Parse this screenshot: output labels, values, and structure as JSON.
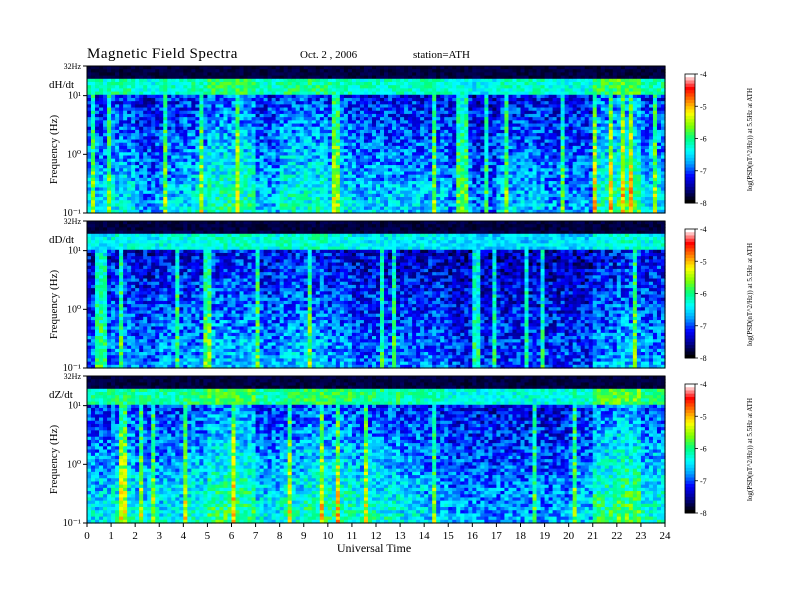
{
  "header": {
    "title": "Magnetic Field Spectra",
    "date": "Oct. 2 , 2006",
    "station": "station=ATH"
  },
  "colors": {
    "background": "#000000",
    "colormap": [
      "#000000",
      "#00008b",
      "#0000ff",
      "#00a0ff",
      "#00ffff",
      "#00ff80",
      "#80ff00",
      "#ffff00",
      "#ff8000",
      "#ff0000",
      "#ffffff"
    ]
  },
  "chart_data": [
    {
      "type": "heatmap",
      "panel_label": "dH/dt",
      "ylabel": "Frequency (Hz)",
      "xlabel": "",
      "y_scale": "log",
      "ylim": [
        0.1,
        32
      ],
      "xlim": [
        0,
        24
      ],
      "y_ticks": [
        "32Hz",
        "10¹",
        "10⁰",
        "10⁻¹"
      ],
      "y_tick_values": [
        32,
        10,
        1,
        0.1
      ],
      "colorbar_label": "log(PSD(nT^2/Hz)) at 5.5Hz at ATH",
      "colorbar_ticks": [
        -4,
        -5,
        -6,
        -7,
        -8
      ],
      "colorbar_range": [
        -8,
        -4
      ],
      "activity_by_hour": [
        0.45,
        0.5,
        0.4,
        0.45,
        0.5,
        0.6,
        0.6,
        0.45,
        0.55,
        0.55,
        0.5,
        0.45,
        0.45,
        0.45,
        0.45,
        0.4,
        0.35,
        0.45,
        0.45,
        0.4,
        0.4,
        0.6,
        0.65,
        0.5
      ]
    },
    {
      "type": "heatmap",
      "panel_label": "dD/dt",
      "ylabel": "Frequency (Hz)",
      "xlabel": "",
      "y_scale": "log",
      "ylim": [
        0.1,
        32
      ],
      "xlim": [
        0,
        24
      ],
      "y_ticks": [
        "32Hz",
        "10¹",
        "10⁰",
        "10⁻¹"
      ],
      "y_tick_values": [
        32,
        10,
        1,
        0.1
      ],
      "colorbar_label": "log(PSD(nT^2/Hz)) at 5.5Hz at ATH",
      "colorbar_ticks": [
        -4,
        -5,
        -6,
        -7,
        -8
      ],
      "colorbar_range": [
        -8,
        -4
      ],
      "activity_by_hour": [
        0.35,
        0.4,
        0.35,
        0.4,
        0.4,
        0.45,
        0.45,
        0.4,
        0.45,
        0.45,
        0.4,
        0.35,
        0.35,
        0.35,
        0.35,
        0.3,
        0.3,
        0.3,
        0.3,
        0.3,
        0.3,
        0.4,
        0.45,
        0.4
      ]
    },
    {
      "type": "heatmap",
      "panel_label": "dZ/dt",
      "ylabel": "Frequency (Hz)",
      "xlabel": "Universal Time",
      "y_scale": "log",
      "ylim": [
        0.1,
        32
      ],
      "xlim": [
        0,
        24
      ],
      "x_ticks": [
        "0",
        "1",
        "2",
        "3",
        "4",
        "5",
        "6",
        "7",
        "8",
        "9",
        "10",
        "11",
        "12",
        "13",
        "14",
        "15",
        "16",
        "17",
        "18",
        "19",
        "20",
        "21",
        "22",
        "23",
        "24"
      ],
      "y_ticks": [
        "32Hz",
        "10¹",
        "10⁰",
        "10⁻¹"
      ],
      "y_tick_values": [
        32,
        10,
        1,
        0.1
      ],
      "colorbar_label": "log(PSD(nT^2/Hz)) at 5.5Hz at ATH",
      "colorbar_ticks": [
        -4,
        -5,
        -6,
        -7,
        -8
      ],
      "colorbar_range": [
        -8,
        -4
      ],
      "activity_by_hour": [
        0.5,
        0.55,
        0.5,
        0.5,
        0.55,
        0.65,
        0.65,
        0.5,
        0.55,
        0.6,
        0.6,
        0.55,
        0.55,
        0.5,
        0.45,
        0.4,
        0.4,
        0.4,
        0.4,
        0.4,
        0.45,
        0.65,
        0.7,
        0.55
      ]
    }
  ]
}
